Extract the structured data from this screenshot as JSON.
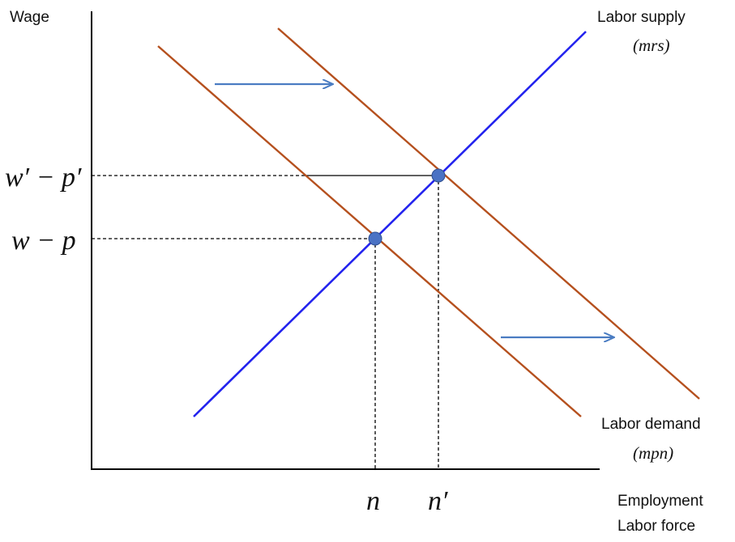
{
  "axes": {
    "y_label": "Wage",
    "x_label_line1": "Employment",
    "x_label_line2": "Labor force"
  },
  "curves": {
    "supply_label": "Labor supply",
    "supply_sub": "(mrs)",
    "demand_label": "Labor demand",
    "demand_sub": "(mpn)"
  },
  "ticks": {
    "wage_new": "w′ − p′",
    "wage_old": "w − p",
    "emp_old": "n",
    "emp_new": "n′"
  },
  "colors": {
    "supply": "#2323ee",
    "demand": "#b5501e",
    "arrow": "#4a7cc2",
    "point": "#4a72c4",
    "axis": "#000000"
  }
}
